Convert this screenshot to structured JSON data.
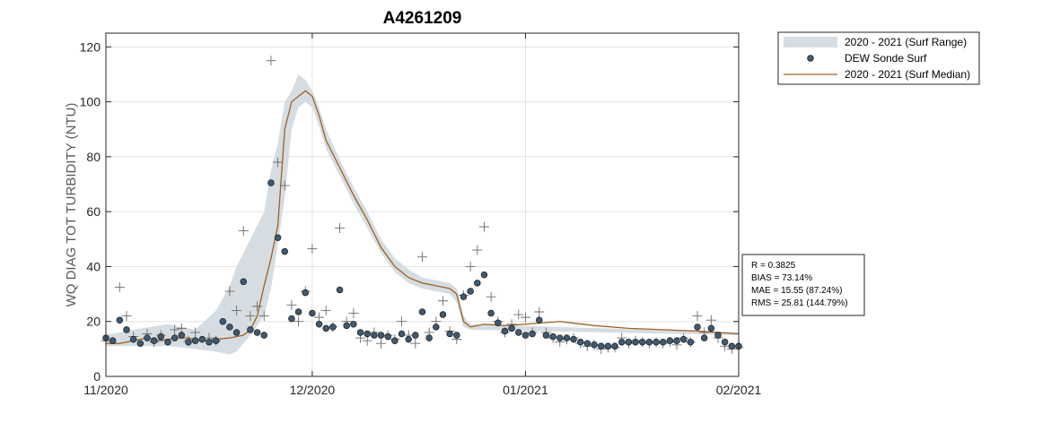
{
  "chart_data": {
    "type": "line",
    "title": "A4261209",
    "ylabel": "WQ DIAG TOT TURBIDITY (NTU)",
    "xlabel": "",
    "xlim": [
      "2020-11-01",
      "2021-02-01"
    ],
    "ylim": [
      0,
      125
    ],
    "yticks": [
      0,
      20,
      40,
      60,
      80,
      100,
      120
    ],
    "xticks": [
      {
        "date": "2020-11-01",
        "label": "11/2020"
      },
      {
        "date": "2020-12-01",
        "label": "12/2020"
      },
      {
        "date": "2021-01-01",
        "label": "01/2021"
      },
      {
        "date": "2021-02-01",
        "label": "02/2021"
      }
    ],
    "grid": true,
    "legend_position": "outside-top-right",
    "legend": [
      {
        "label": "2020 - 2021 (Surf Range)",
        "kind": "band",
        "color": "#d5dde2"
      },
      {
        "label": "DEW Sonde Surf",
        "kind": "marker",
        "color": "#3e5a73"
      },
      {
        "label": "2020 - 2021 (Surf Median)",
        "kind": "line",
        "color": "#a0611f"
      }
    ],
    "stats": [
      "R = 0.3825",
      "BIAS = 73.14%",
      "MAE = 15.55 (87.24%)",
      "RMS = 25.81 (144.79%)"
    ],
    "series": [
      {
        "name": "2020 - 2021 (Surf Median)",
        "kind": "line",
        "color": "#a0611f",
        "points": [
          [
            "2020-11-01",
            12
          ],
          [
            "2020-11-03",
            12
          ],
          [
            "2020-11-05",
            13
          ],
          [
            "2020-11-07",
            14
          ],
          [
            "2020-11-09",
            13
          ],
          [
            "2020-11-11",
            14
          ],
          [
            "2020-11-13",
            14
          ],
          [
            "2020-11-15",
            13
          ],
          [
            "2020-11-17",
            13.5
          ],
          [
            "2020-11-19",
            14
          ],
          [
            "2020-11-21",
            15
          ],
          [
            "2020-11-22",
            17
          ],
          [
            "2020-11-23",
            22
          ],
          [
            "2020-11-24",
            33
          ],
          [
            "2020-11-25",
            43
          ],
          [
            "2020-11-26",
            55
          ],
          [
            "2020-11-27",
            90
          ],
          [
            "2020-11-28",
            100
          ],
          [
            "2020-11-29",
            102
          ],
          [
            "2020-11-30",
            104
          ],
          [
            "2020-12-01",
            102
          ],
          [
            "2020-12-02",
            95
          ],
          [
            "2020-12-03",
            86
          ],
          [
            "2020-12-05",
            76
          ],
          [
            "2020-12-07",
            66
          ],
          [
            "2020-12-09",
            57
          ],
          [
            "2020-12-11",
            47
          ],
          [
            "2020-12-13",
            40
          ],
          [
            "2020-12-15",
            36
          ],
          [
            "2020-12-17",
            34
          ],
          [
            "2020-12-19",
            33
          ],
          [
            "2020-12-21",
            32
          ],
          [
            "2020-12-22",
            30
          ],
          [
            "2020-12-23",
            20
          ],
          [
            "2020-12-24",
            18
          ],
          [
            "2020-12-26",
            19
          ],
          [
            "2020-12-29",
            18.5
          ],
          [
            "2021-01-01",
            19
          ],
          [
            "2021-01-06",
            20
          ],
          [
            "2021-01-11",
            18.5
          ],
          [
            "2021-01-16",
            17.5
          ],
          [
            "2021-01-21",
            17
          ],
          [
            "2021-01-26",
            16.5
          ],
          [
            "2021-02-01",
            15.5
          ]
        ]
      },
      {
        "name": "2020 - 2021 (Surf Range)",
        "kind": "band",
        "color": "#d5dde2",
        "points": [
          [
            "2020-11-01",
            11,
            15
          ],
          [
            "2020-11-05",
            11,
            17
          ],
          [
            "2020-11-10",
            11,
            19
          ],
          [
            "2020-11-14",
            10,
            17
          ],
          [
            "2020-11-17",
            9,
            24
          ],
          [
            "2020-11-19",
            8,
            33
          ],
          [
            "2020-11-20",
            9,
            40
          ],
          [
            "2020-11-21",
            12,
            45
          ],
          [
            "2020-11-22",
            15,
            50
          ],
          [
            "2020-11-24",
            22,
            60
          ],
          [
            "2020-11-25",
            32,
            75
          ],
          [
            "2020-11-26",
            48,
            85
          ],
          [
            "2020-11-27",
            65,
            100
          ],
          [
            "2020-11-28",
            90,
            104
          ],
          [
            "2020-11-29",
            98,
            110
          ],
          [
            "2020-11-30",
            100,
            108
          ],
          [
            "2020-12-01",
            98,
            104
          ],
          [
            "2020-12-02",
            91,
            98
          ],
          [
            "2020-12-03",
            83,
            90
          ],
          [
            "2020-12-05",
            73,
            79
          ],
          [
            "2020-12-07",
            63,
            69
          ],
          [
            "2020-12-09",
            54,
            60
          ],
          [
            "2020-12-11",
            45,
            50
          ],
          [
            "2020-12-13",
            38,
            43
          ],
          [
            "2020-12-15",
            34,
            39
          ],
          [
            "2020-12-17",
            32,
            36
          ],
          [
            "2020-12-19",
            31,
            35
          ],
          [
            "2020-12-21",
            30,
            34
          ],
          [
            "2020-12-22",
            27,
            32
          ],
          [
            "2020-12-23",
            18,
            22
          ],
          [
            "2020-12-24",
            17,
            19
          ],
          [
            "2021-02-01",
            15,
            16
          ]
        ]
      },
      {
        "name": "DEW Sonde Surf",
        "kind": "marker",
        "color": "#3e5a73",
        "points": [
          [
            "2020-11-01",
            14
          ],
          [
            "2020-11-02",
            13
          ],
          [
            "2020-11-03",
            20.5
          ],
          [
            "2020-11-04",
            17
          ],
          [
            "2020-11-05",
            13.5
          ],
          [
            "2020-11-06",
            12
          ],
          [
            "2020-11-07",
            14
          ],
          [
            "2020-11-08",
            13
          ],
          [
            "2020-11-09",
            14.5
          ],
          [
            "2020-11-10",
            12.5
          ],
          [
            "2020-11-11",
            14
          ],
          [
            "2020-11-12",
            15
          ],
          [
            "2020-11-13",
            12.5
          ],
          [
            "2020-11-14",
            13
          ],
          [
            "2020-11-15",
            13.5
          ],
          [
            "2020-11-16",
            12.5
          ],
          [
            "2020-11-17",
            13
          ],
          [
            "2020-11-18",
            20
          ],
          [
            "2020-11-19",
            18
          ],
          [
            "2020-11-20",
            16
          ],
          [
            "2020-11-21",
            34.5
          ],
          [
            "2020-11-22",
            17
          ],
          [
            "2020-11-23",
            16
          ],
          [
            "2020-11-24",
            15
          ],
          [
            "2020-11-25",
            70.5
          ],
          [
            "2020-11-26",
            50.5
          ],
          [
            "2020-11-27",
            45.5
          ],
          [
            "2020-11-28",
            21
          ],
          [
            "2020-11-29",
            23.5
          ],
          [
            "2020-11-30",
            30.5
          ],
          [
            "2020-12-01",
            23
          ],
          [
            "2020-12-02",
            19
          ],
          [
            "2020-12-03",
            17.5
          ],
          [
            "2020-12-04",
            18
          ],
          [
            "2020-12-05",
            31.5
          ],
          [
            "2020-12-06",
            18.5
          ],
          [
            "2020-12-07",
            19
          ],
          [
            "2020-12-08",
            16
          ],
          [
            "2020-12-09",
            15.5
          ],
          [
            "2020-12-10",
            15
          ],
          [
            "2020-12-11",
            15
          ],
          [
            "2020-12-12",
            14.5
          ],
          [
            "2020-12-13",
            13
          ],
          [
            "2020-12-14",
            15.5
          ],
          [
            "2020-12-15",
            13.5
          ],
          [
            "2020-12-16",
            15
          ],
          [
            "2020-12-17",
            23.5
          ],
          [
            "2020-12-18",
            14
          ],
          [
            "2020-12-19",
            18
          ],
          [
            "2020-12-20",
            22.5
          ],
          [
            "2020-12-21",
            15.5
          ],
          [
            "2020-12-22",
            15
          ],
          [
            "2020-12-23",
            29
          ],
          [
            "2020-12-24",
            31
          ],
          [
            "2020-12-25",
            34
          ],
          [
            "2020-12-26",
            37
          ],
          [
            "2020-12-27",
            23
          ],
          [
            "2020-12-28",
            19.5
          ],
          [
            "2020-12-29",
            16.5
          ],
          [
            "2020-12-30",
            17.5
          ],
          [
            "2020-12-31",
            16
          ],
          [
            "2021-01-01",
            15
          ],
          [
            "2021-01-02",
            15.5
          ],
          [
            "2021-01-03",
            20.5
          ],
          [
            "2021-01-04",
            15
          ],
          [
            "2021-01-05",
            14.5
          ],
          [
            "2021-01-06",
            14
          ],
          [
            "2021-01-07",
            14
          ],
          [
            "2021-01-08",
            13.5
          ],
          [
            "2021-01-09",
            12.5
          ],
          [
            "2021-01-10",
            12
          ],
          [
            "2021-01-11",
            11.5
          ],
          [
            "2021-01-12",
            11
          ],
          [
            "2021-01-13",
            11
          ],
          [
            "2021-01-14",
            11
          ],
          [
            "2021-01-15",
            12.5
          ],
          [
            "2021-01-16",
            12.5
          ],
          [
            "2021-01-17",
            12.5
          ],
          [
            "2021-01-18",
            12.5
          ],
          [
            "2021-01-19",
            12.5
          ],
          [
            "2021-01-20",
            12.5
          ],
          [
            "2021-01-21",
            12.5
          ],
          [
            "2021-01-22",
            13
          ],
          [
            "2021-01-23",
            13
          ],
          [
            "2021-01-24",
            13.5
          ],
          [
            "2021-01-25",
            12.5
          ],
          [
            "2021-01-26",
            18
          ],
          [
            "2021-01-27",
            14
          ],
          [
            "2021-01-28",
            17.5
          ],
          [
            "2021-01-29",
            15
          ],
          [
            "2021-01-30",
            12.5
          ],
          [
            "2021-01-31",
            11
          ],
          [
            "2021-02-01",
            11
          ]
        ]
      },
      {
        "name": "",
        "kind": "cross",
        "color": "#6b6b6b",
        "points": [
          [
            "2020-11-01",
            13
          ],
          [
            "2020-11-03",
            32.5
          ],
          [
            "2020-11-04",
            22
          ],
          [
            "2020-11-05",
            14.5
          ],
          [
            "2020-11-07",
            15.5
          ],
          [
            "2020-11-08",
            12.5
          ],
          [
            "2020-11-09",
            15
          ],
          [
            "2020-11-11",
            17
          ],
          [
            "2020-11-12",
            17.5
          ],
          [
            "2020-11-13",
            13
          ],
          [
            "2020-11-14",
            16
          ],
          [
            "2020-11-16",
            14
          ],
          [
            "2020-11-17",
            13
          ],
          [
            "2020-11-19",
            31
          ],
          [
            "2020-11-20",
            24
          ],
          [
            "2020-11-21",
            53
          ],
          [
            "2020-11-22",
            22
          ],
          [
            "2020-11-23",
            25.5
          ],
          [
            "2020-11-24",
            22
          ],
          [
            "2020-11-25",
            115
          ],
          [
            "2020-11-26",
            78
          ],
          [
            "2020-11-27",
            69.5
          ],
          [
            "2020-11-28",
            26
          ],
          [
            "2020-11-29",
            20
          ],
          [
            "2020-11-30",
            31
          ],
          [
            "2020-12-01",
            46.5
          ],
          [
            "2020-12-02",
            21.5
          ],
          [
            "2020-12-03",
            24
          ],
          [
            "2020-12-04",
            18
          ],
          [
            "2020-12-05",
            54
          ],
          [
            "2020-12-06",
            20
          ],
          [
            "2020-12-07",
            23
          ],
          [
            "2020-12-08",
            14
          ],
          [
            "2020-12-09",
            13
          ],
          [
            "2020-12-10",
            16
          ],
          [
            "2020-12-11",
            12
          ],
          [
            "2020-12-12",
            15
          ],
          [
            "2020-12-13",
            13.5
          ],
          [
            "2020-12-14",
            20
          ],
          [
            "2020-12-15",
            15
          ],
          [
            "2020-12-16",
            12
          ],
          [
            "2020-12-17",
            43.5
          ],
          [
            "2020-12-18",
            16
          ],
          [
            "2020-12-19",
            20
          ],
          [
            "2020-12-20",
            27.5
          ],
          [
            "2020-12-21",
            16.5
          ],
          [
            "2020-12-22",
            13.5
          ],
          [
            "2020-12-23",
            29.5
          ],
          [
            "2020-12-24",
            40
          ],
          [
            "2020-12-25",
            46
          ],
          [
            "2020-12-26",
            54.5
          ],
          [
            "2020-12-27",
            29
          ],
          [
            "2020-12-28",
            20
          ],
          [
            "2020-12-29",
            16
          ],
          [
            "2020-12-30",
            19
          ],
          [
            "2020-12-31",
            22.5
          ],
          [
            "2021-01-01",
            21.5
          ],
          [
            "2021-01-02",
            16
          ],
          [
            "2021-01-03",
            23.5
          ],
          [
            "2021-01-04",
            16
          ],
          [
            "2021-01-05",
            14
          ],
          [
            "2021-01-06",
            12.5
          ],
          [
            "2021-01-07",
            13.5
          ],
          [
            "2021-01-08",
            14
          ],
          [
            "2021-01-09",
            12
          ],
          [
            "2021-01-10",
            11
          ],
          [
            "2021-01-11",
            11.5
          ],
          [
            "2021-01-12",
            10
          ],
          [
            "2021-01-13",
            10.5
          ],
          [
            "2021-01-14",
            10.5
          ],
          [
            "2021-01-15",
            14
          ],
          [
            "2021-01-16",
            12
          ],
          [
            "2021-01-17",
            13
          ],
          [
            "2021-01-18",
            12.5
          ],
          [
            "2021-01-19",
            12
          ],
          [
            "2021-01-20",
            12.5
          ],
          [
            "2021-01-21",
            12
          ],
          [
            "2021-01-22",
            12.5
          ],
          [
            "2021-01-23",
            11.5
          ],
          [
            "2021-01-24",
            14
          ],
          [
            "2021-01-25",
            12.5
          ],
          [
            "2021-01-26",
            22
          ],
          [
            "2021-01-27",
            16
          ],
          [
            "2021-01-28",
            20.5
          ],
          [
            "2021-01-29",
            14
          ],
          [
            "2021-01-30",
            11
          ],
          [
            "2021-01-31",
            10
          ],
          [
            "2021-02-01",
            10.5
          ]
        ]
      }
    ]
  }
}
